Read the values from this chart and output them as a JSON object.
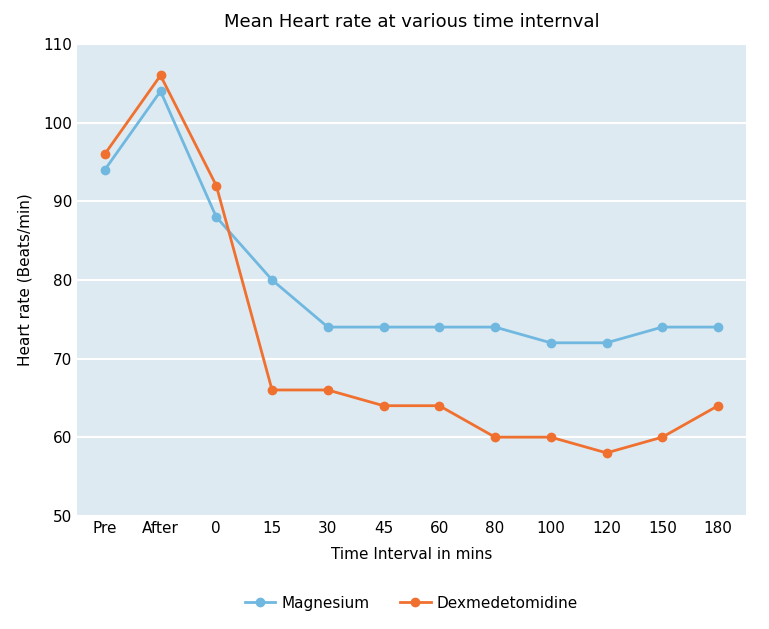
{
  "title": "Mean Heart rate at various time internval",
  "xlabel": "Time Interval in mins",
  "ylabel": "Heart rate (Beats/min)",
  "x_labels": [
    "Pre",
    "After",
    "0",
    "15",
    "30",
    "45",
    "60",
    "80",
    "100",
    "120",
    "150",
    "180"
  ],
  "magnesium": [
    94,
    104,
    88,
    80,
    74,
    74,
    74,
    74,
    72,
    72,
    74,
    74
  ],
  "dexmedetomidine": [
    96,
    106,
    92,
    66,
    66,
    64,
    64,
    60,
    60,
    58,
    60,
    64
  ],
  "magnesium_color": "#70B8E0",
  "dexmedetomidine_color": "#F07030",
  "ylim": [
    50,
    110
  ],
  "yticks": [
    50,
    60,
    70,
    80,
    90,
    100,
    110
  ],
  "legend_labels": [
    "Magnesium",
    "Dexmedetomidine"
  ],
  "title_fontsize": 13,
  "axis_label_fontsize": 11,
  "tick_fontsize": 11,
  "legend_fontsize": 11,
  "marker": "o",
  "linewidth": 2.0,
  "markersize": 6,
  "grid_color": "#BDD7EE",
  "plot_bg_color": "#DEEAF1",
  "background_color": "#FFFFFF"
}
